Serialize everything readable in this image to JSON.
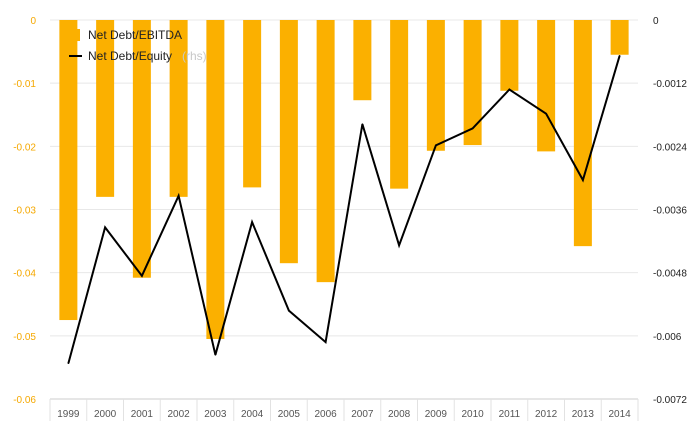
{
  "chart_data": {
    "type": "bar",
    "categories": [
      "1999",
      "2000",
      "2001",
      "2002",
      "2003",
      "2004",
      "2005",
      "2006",
      "2007",
      "2008",
      "2009",
      "2010",
      "2011",
      "2012",
      "2013",
      "2014"
    ],
    "series": [
      {
        "name": "Net Debt/EBITDA",
        "type": "bar",
        "axis": "left",
        "color": "#fbb000",
        "values": [
          -0.0475,
          -0.028,
          -0.0408,
          -0.028,
          -0.0505,
          -0.0265,
          -0.0385,
          -0.0415,
          -0.0127,
          -0.0267,
          -0.0207,
          -0.0198,
          -0.0112,
          -0.0208,
          -0.0358,
          -0.0055
        ]
      },
      {
        "name": "Net Debt/Equity",
        "type": "line",
        "axis": "right",
        "color": "#000000",
        "values": [
          -0.00652,
          -0.00394,
          -0.00486,
          -0.00334,
          -0.00636,
          -0.00384,
          -0.00552,
          -0.00612,
          -0.00198,
          -0.00428,
          -0.00238,
          -0.00206,
          -0.00132,
          -0.00178,
          -0.00304,
          -0.00068
        ]
      }
    ],
    "ylim_left": [
      -0.06,
      0
    ],
    "ylim_right": [
      -0.0072,
      0
    ],
    "yticks_left": [
      "0",
      "-0.01",
      "-0.02",
      "-0.03",
      "-0.04",
      "-0.05",
      "-0.06"
    ],
    "yticks_right": [
      "0",
      "-0.0012",
      "-0.0024",
      "-0.0036",
      "-0.0048",
      "-0.006",
      "-0.0072"
    ],
    "rhs_note": "(rhs)",
    "grid": true,
    "legend_position": "top-left",
    "left_tick_color": "#f5a800"
  }
}
